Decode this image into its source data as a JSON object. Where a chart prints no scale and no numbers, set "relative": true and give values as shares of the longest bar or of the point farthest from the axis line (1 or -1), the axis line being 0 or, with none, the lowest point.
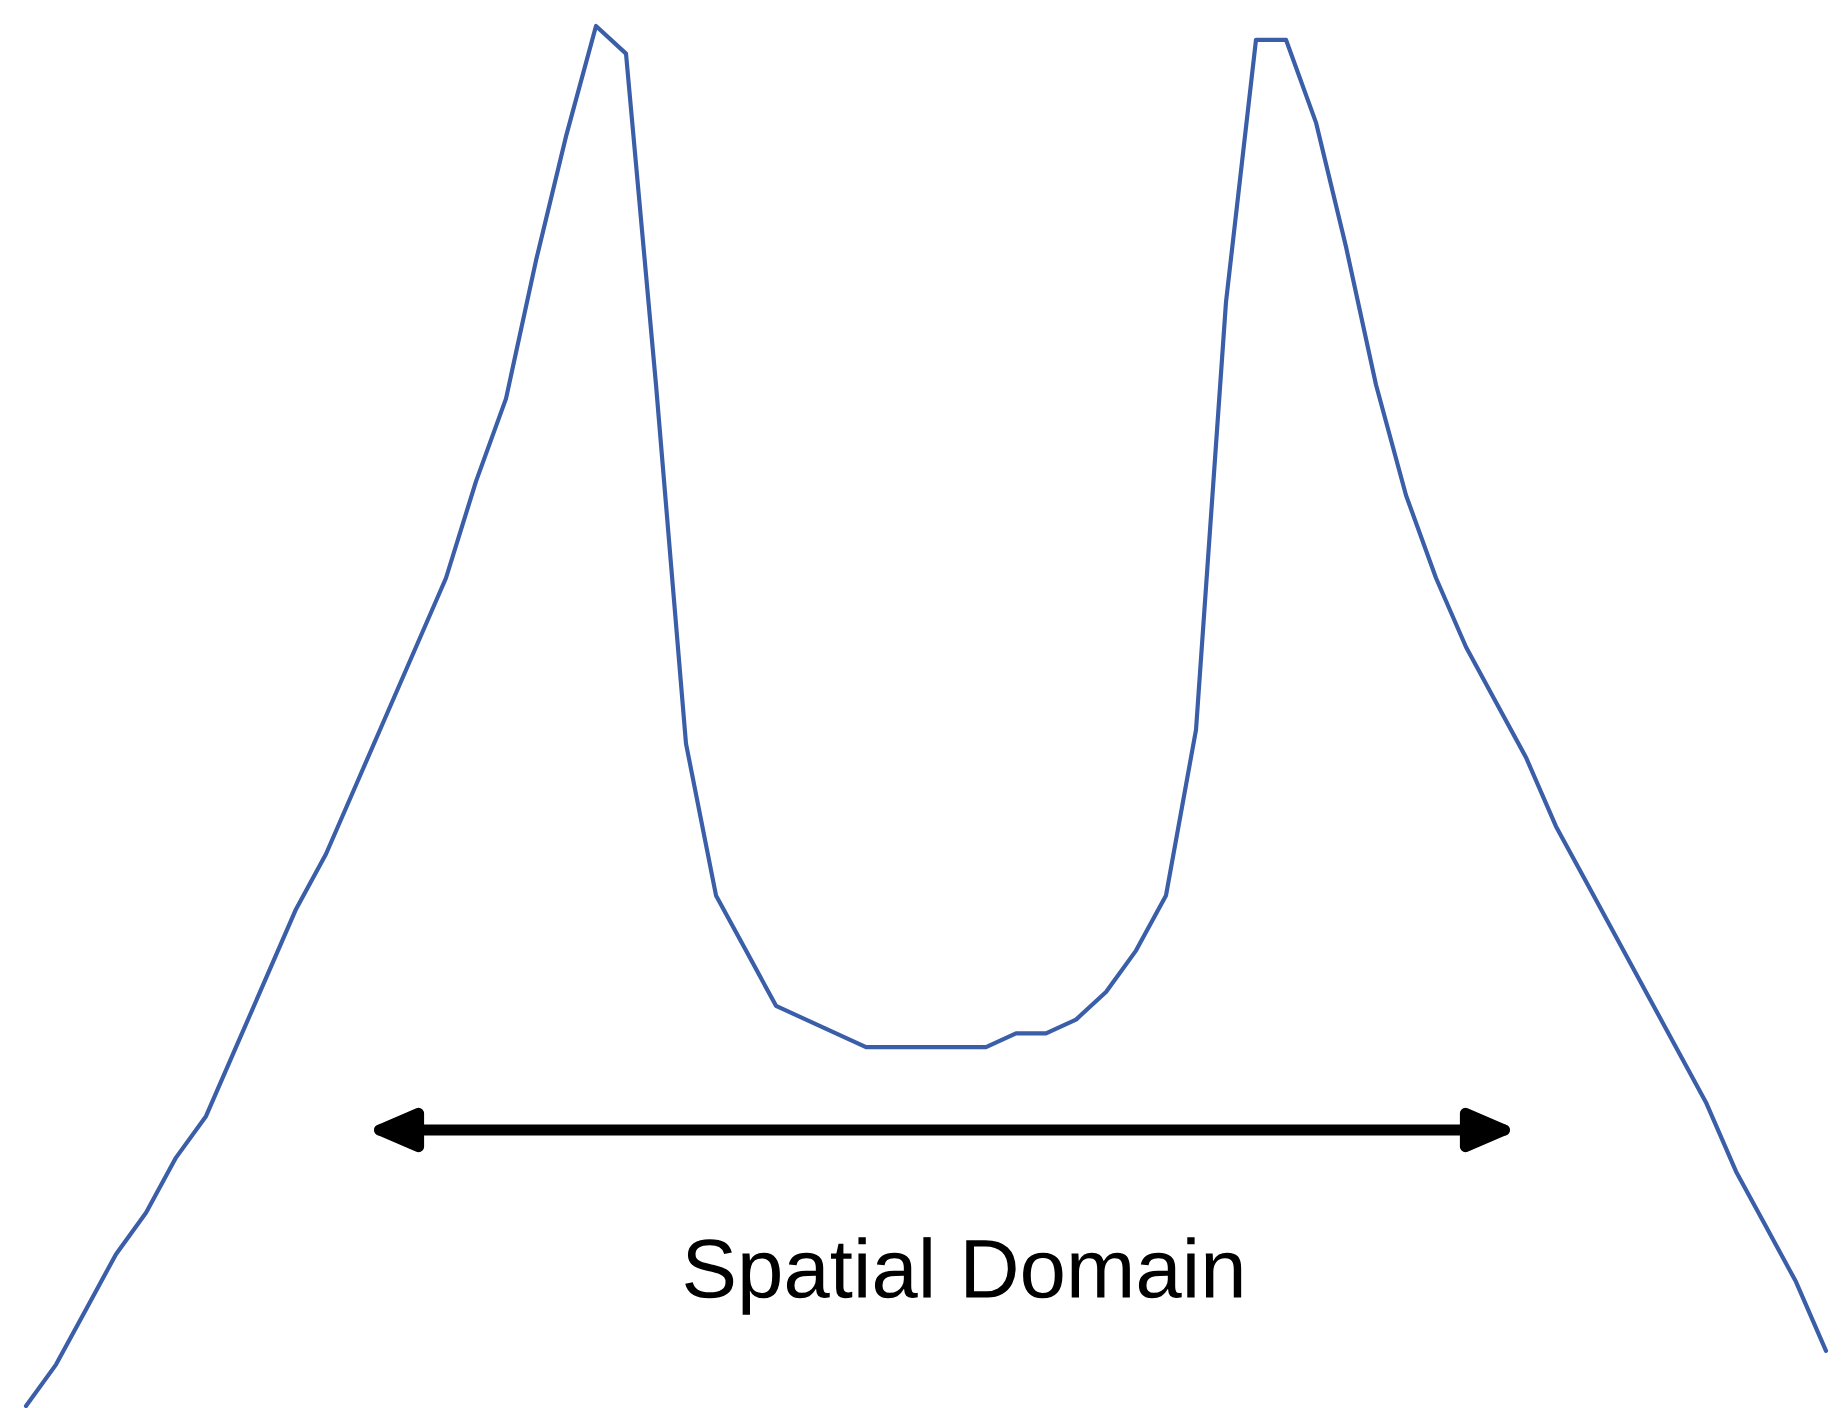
{
  "chart_data": {
    "type": "line",
    "relative": true,
    "categories": [
      null,
      null,
      null,
      null,
      null,
      null,
      null,
      null,
      null,
      null,
      null,
      null,
      null,
      null,
      null,
      null,
      null,
      null,
      null,
      null,
      null,
      null,
      null,
      null,
      null,
      null,
      null,
      null,
      null,
      null,
      null,
      null,
      null,
      null,
      null,
      null,
      null,
      null,
      null,
      null,
      null,
      null,
      null,
      null,
      null,
      null,
      null,
      null,
      null,
      null,
      null,
      null,
      null,
      null,
      null,
      null,
      null,
      null,
      null,
      null,
      null
    ],
    "series": [
      {
        "color": "#3a5ea8",
        "values": [
          0,
          0.03,
          0.07,
          0.11,
          0.14,
          0.18,
          0.21,
          0.26,
          0.31,
          0.36,
          0.4,
          0.45,
          0.5,
          0.55,
          0.6,
          0.67,
          0.73,
          0.83,
          0.92,
          1.0,
          0.98,
          0.74,
          0.48,
          0.37,
          0.33,
          0.29,
          0.28,
          0.27,
          0.26,
          0.26,
          0.26,
          0.26,
          0.26,
          0.27,
          0.27,
          0.28,
          0.3,
          0.33,
          0.37,
          0.49,
          0.8,
          0.99,
          0.99,
          0.93,
          0.84,
          0.74,
          0.66,
          0.6,
          0.55,
          0.51,
          0.47,
          0.42,
          0.38,
          0.34,
          0.3,
          0.26,
          0.22,
          0.17,
          0.13,
          0.09,
          0.04
        ]
      }
    ],
    "annotations": [
      "Spatial Domain"
    ],
    "grid": false,
    "legend": false
  }
}
